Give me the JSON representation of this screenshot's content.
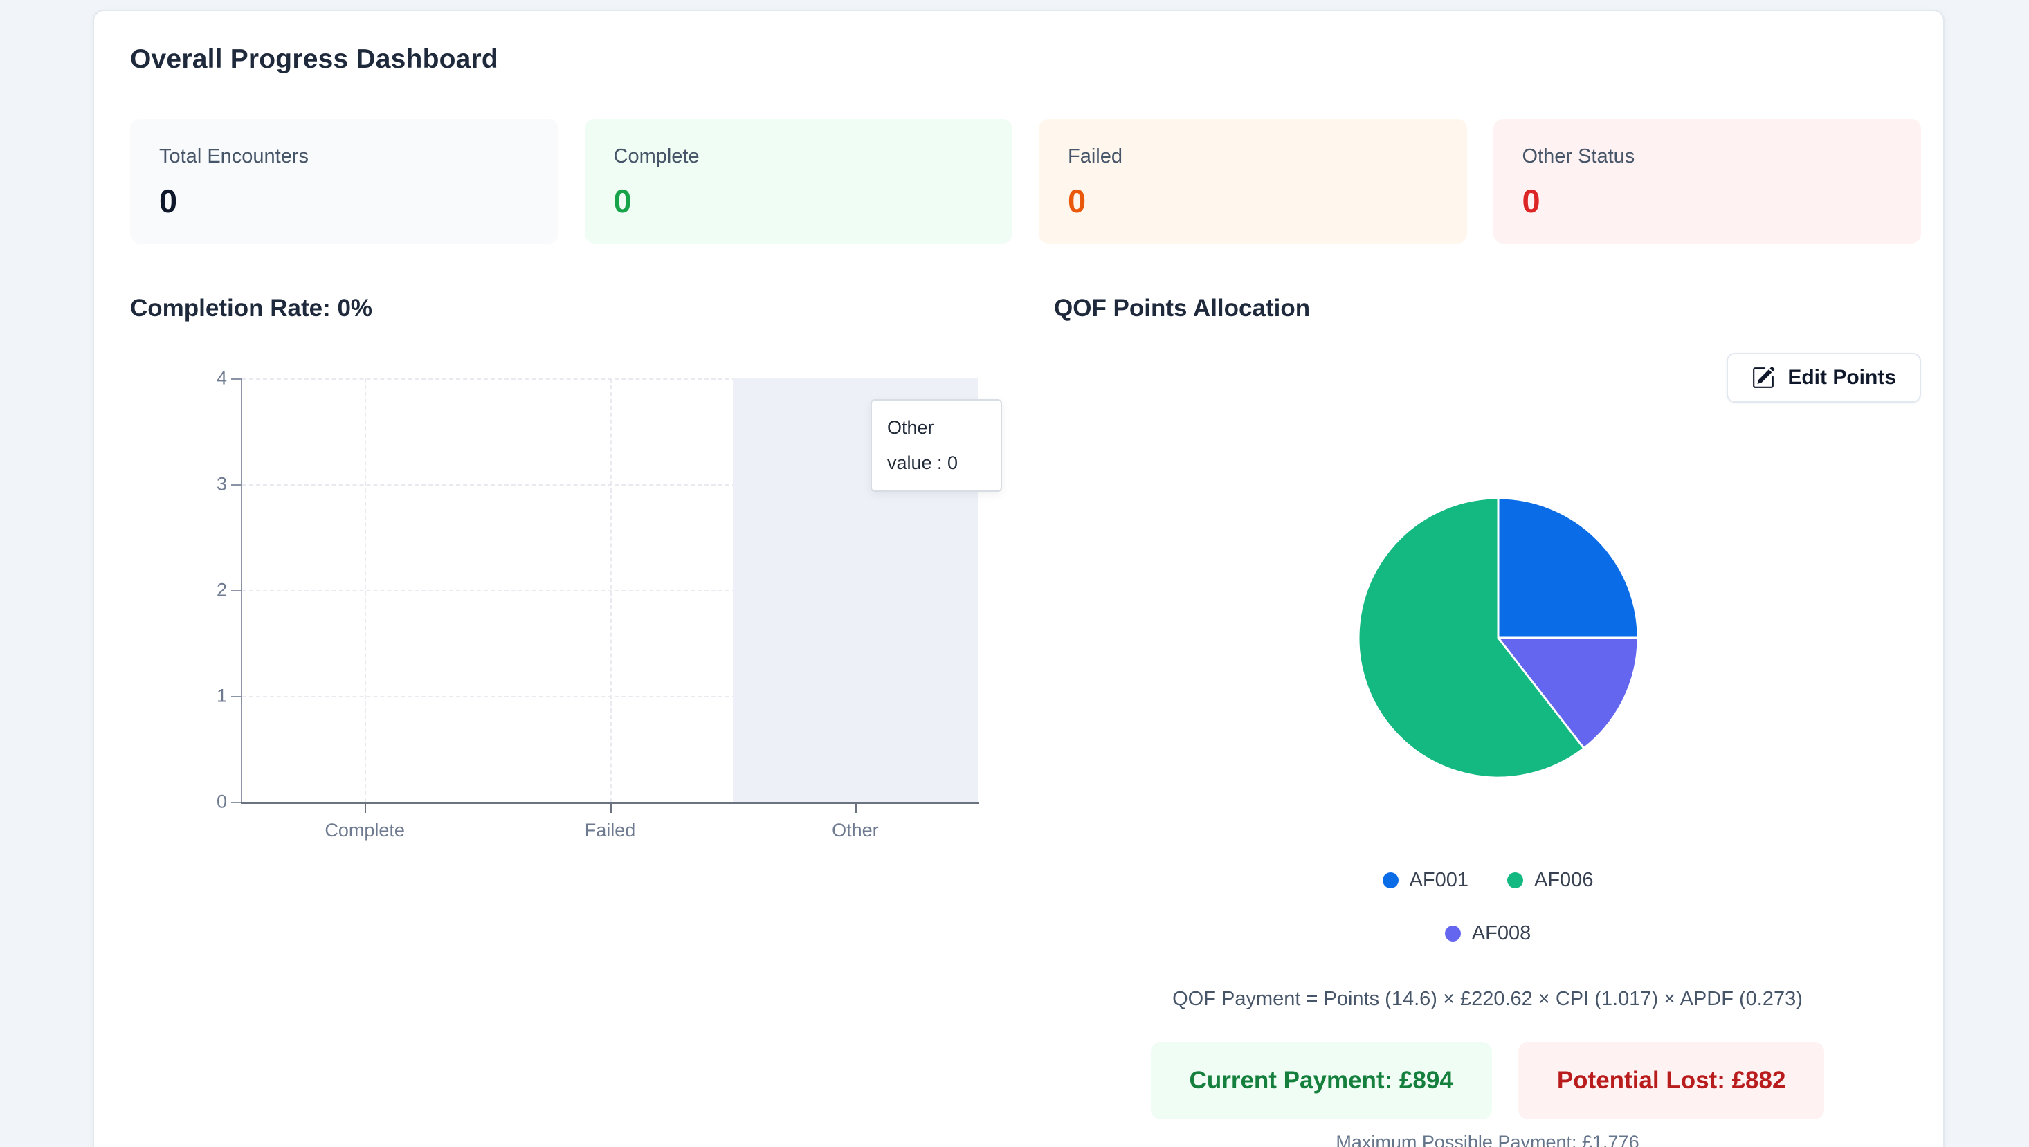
{
  "page_title": "Overall Progress Dashboard",
  "stats": [
    {
      "label": "Total Encounters",
      "value": "0",
      "bg": "#f8fafc",
      "value_color": "#0f172a"
    },
    {
      "label": "Complete",
      "value": "0",
      "bg": "#f0fdf4",
      "value_color": "#16a34a"
    },
    {
      "label": "Failed",
      "value": "0",
      "bg": "#fff7ed",
      "value_color": "#ea580c"
    },
    {
      "label": "Other Status",
      "value": "0",
      "bg": "#fef2f2",
      "value_color": "#dc2626"
    }
  ],
  "sections": {
    "completion_title": "Completion Rate: 0%",
    "qof_title": "QOF Points Allocation"
  },
  "qof": {
    "edit_button_label": "Edit Points",
    "formula": "QOF Payment = Points (14.6) × £220.62 × CPI (1.017) × APDF (0.273)",
    "current_payment": "Current Payment: £894",
    "potential_lost": "Potential Lost: £882",
    "max_payment": "Maximum Possible Payment: £1,776"
  },
  "colors": {
    "pie_blue": "#0b6ce8",
    "pie_green": "#13b981",
    "pie_purple": "#6466f0",
    "hover_band": "#edf1f7",
    "axis": "#6b7280",
    "tick_label": "#6e7a90"
  },
  "chart_data": [
    {
      "type": "bar",
      "title": "Completion Rate: 0%",
      "categories": [
        "Complete",
        "Failed",
        "Other"
      ],
      "values": [
        0,
        0,
        0
      ],
      "xlabel": "",
      "ylabel": "",
      "ylim": [
        0,
        4
      ],
      "yticks": [
        0,
        1,
        2,
        3,
        4
      ],
      "grid": true,
      "hovered_category": "Other",
      "hover_band": true,
      "tooltip": {
        "title": "Other",
        "value_line": "value : 0"
      }
    },
    {
      "type": "pie",
      "title": "QOF Points Allocation",
      "series": [
        {
          "name": "AF001",
          "percent": 25.0,
          "color": "#0b6ce8"
        },
        {
          "name": "AF006",
          "percent": 60.5,
          "color": "#13b981"
        },
        {
          "name": "AF008",
          "percent": 14.5,
          "color": "#6466f0"
        }
      ],
      "draw_order_clockwise_from_top": [
        "AF001",
        "AF008",
        "AF006"
      ],
      "legend_position": "bottom",
      "values_are_estimated_percent": true
    }
  ]
}
